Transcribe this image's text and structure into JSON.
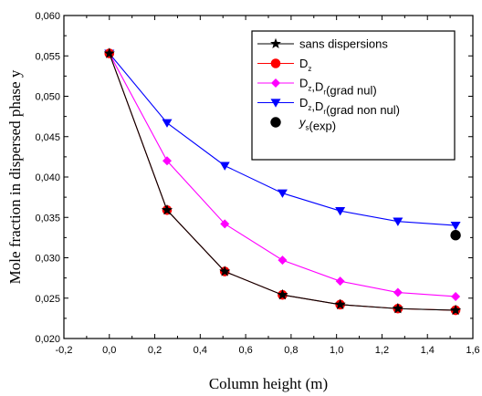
{
  "chart_data": {
    "type": "line",
    "xlabel": "Column height (m)",
    "ylabel": "Mole fraction in dispersed phase y",
    "xlim": [
      -0.2,
      1.6
    ],
    "ylim": [
      0.02,
      0.06
    ],
    "x_ticks": [
      "-0,2",
      "0,0",
      "0,2",
      "0,4",
      "0,6",
      "0,8",
      "1,0",
      "1,2",
      "1,4",
      "1,6"
    ],
    "y_ticks": [
      "0,020",
      "0,025",
      "0,030",
      "0,035",
      "0,040",
      "0,045",
      "0,050",
      "0,055",
      "0,060"
    ],
    "grid": false,
    "legend_position": "top-right",
    "series": [
      {
        "name": "sans dispersions",
        "legend_main": "sans dispersions",
        "legend_parts": [
          {
            "t": "sans dispersions",
            "sub": false
          }
        ],
        "color": "#000000",
        "marker": "star",
        "x": [
          0.0,
          0.254,
          0.508,
          0.762,
          1.016,
          1.27,
          1.524
        ],
        "y": [
          0.0553,
          0.0359,
          0.0283,
          0.0254,
          0.0242,
          0.0237,
          0.0235
        ]
      },
      {
        "name": "Dz",
        "legend_parts": [
          {
            "t": "D",
            "sub": false
          },
          {
            "t": "z",
            "sub": true
          }
        ],
        "color": "#ff0000",
        "marker": "circle",
        "x": [
          0.0,
          0.254,
          0.508,
          0.762,
          1.016,
          1.27,
          1.524
        ],
        "y": [
          0.0553,
          0.0359,
          0.0283,
          0.0254,
          0.0242,
          0.0237,
          0.0235
        ]
      },
      {
        "name": "Dz,Dr(grad nul)",
        "legend_parts": [
          {
            "t": "D",
            "sub": false
          },
          {
            "t": "z",
            "sub": true
          },
          {
            "t": ",D",
            "sub": false
          },
          {
            "t": "r",
            "sub": true
          },
          {
            "t": "(grad nul)",
            "sub": false
          }
        ],
        "color": "#ff00ff",
        "marker": "diamond",
        "x": [
          0.0,
          0.254,
          0.508,
          0.762,
          1.016,
          1.27,
          1.524
        ],
        "y": [
          0.0553,
          0.042,
          0.0342,
          0.0297,
          0.0271,
          0.0257,
          0.0252
        ]
      },
      {
        "name": "Dz,Dr(grad non nul)",
        "legend_parts": [
          {
            "t": "D",
            "sub": false
          },
          {
            "t": "z",
            "sub": true
          },
          {
            "t": ",D",
            "sub": false
          },
          {
            "t": "r",
            "sub": true
          },
          {
            "t": "(grad non nul)",
            "sub": false
          }
        ],
        "color": "#0000ff",
        "marker": "triangle-down",
        "x": [
          0.0,
          0.254,
          0.508,
          0.762,
          1.016,
          1.27,
          1.524
        ],
        "y": [
          0.0553,
          0.0467,
          0.0414,
          0.038,
          0.0358,
          0.0345,
          0.034
        ]
      },
      {
        "name": "ys(exp)",
        "legend_parts": [
          {
            "t": "y",
            "sub": false,
            "italic": true
          },
          {
            "t": "s",
            "sub": true
          },
          {
            "t": "(exp)",
            "sub": false
          }
        ],
        "color": "#000000",
        "marker": "circle-big",
        "line": false,
        "x": [
          1.524
        ],
        "y": [
          0.0328
        ]
      }
    ]
  }
}
